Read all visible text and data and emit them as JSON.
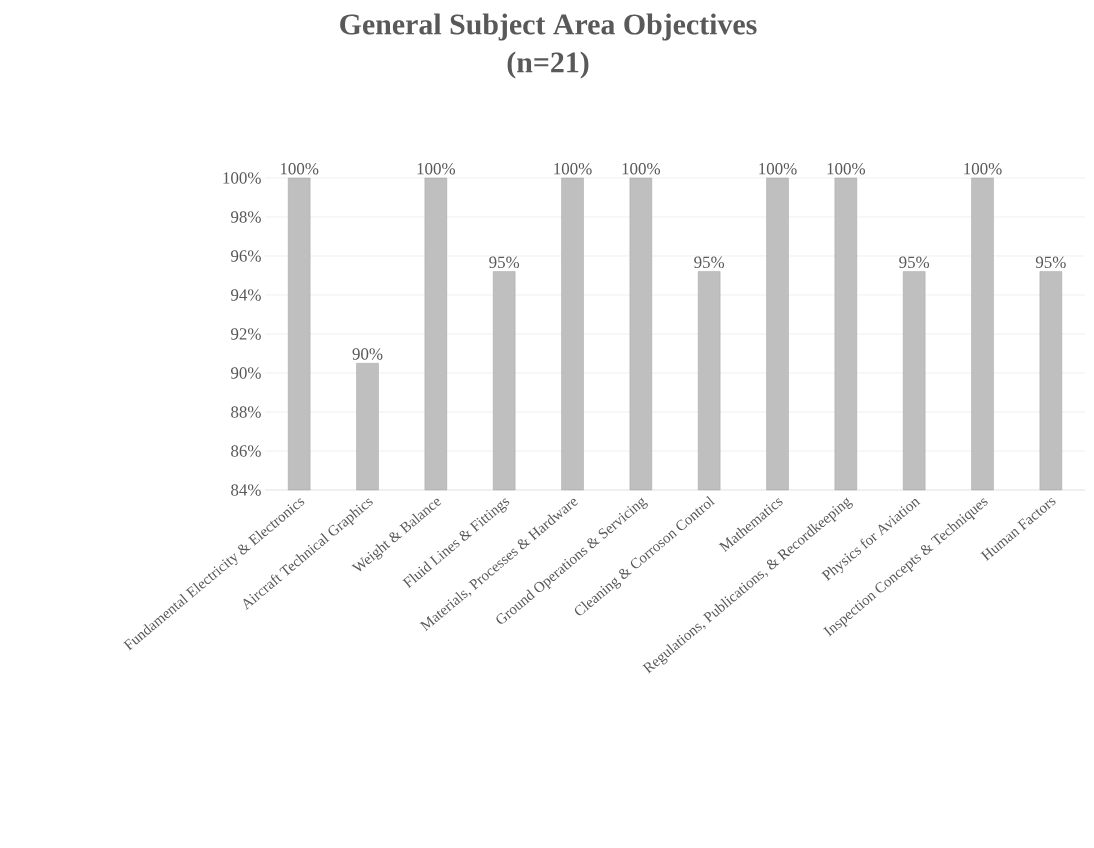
{
  "chart_data": {
    "type": "bar",
    "title": "General Subject Area Objectives",
    "subtitle": "(n=21)",
    "categories": [
      "Fundamental Electricity & Electronics",
      "Aircraft Technical Graphics",
      "Weight & Balance",
      "Fluid Lines & Fittings",
      "Materials, Processes & Hardware",
      "Ground Operations & Servicing",
      "Cleaning & Corroson Control",
      "Mathematics",
      "Regulations, Publications, & Recordkeeping",
      "Physics for Aviation",
      "Inspection Concepts & Techniques",
      "Human Factors"
    ],
    "values": [
      100,
      90.5,
      100,
      95.2,
      100,
      100,
      95.2,
      100,
      100,
      95.2,
      100,
      95.2
    ],
    "value_labels": [
      "100%",
      "90%",
      "100%",
      "95%",
      "100%",
      "100%",
      "95%",
      "100%",
      "100%",
      "95%",
      "100%",
      "95%"
    ],
    "color": "#bfbfbf",
    "ylim": [
      84,
      100
    ],
    "yticks": [
      {
        "value": 84,
        "label": "84%"
      },
      {
        "value": 86,
        "label": "86%"
      },
      {
        "value": 88,
        "label": "88%"
      },
      {
        "value": 90,
        "label": "90%"
      },
      {
        "value": 92,
        "label": "92%"
      },
      {
        "value": 94,
        "label": "94%"
      },
      {
        "value": 96,
        "label": "96%"
      },
      {
        "value": 98,
        "label": "98%"
      },
      {
        "value": 100,
        "label": "100%"
      }
    ],
    "grid": "y"
  }
}
